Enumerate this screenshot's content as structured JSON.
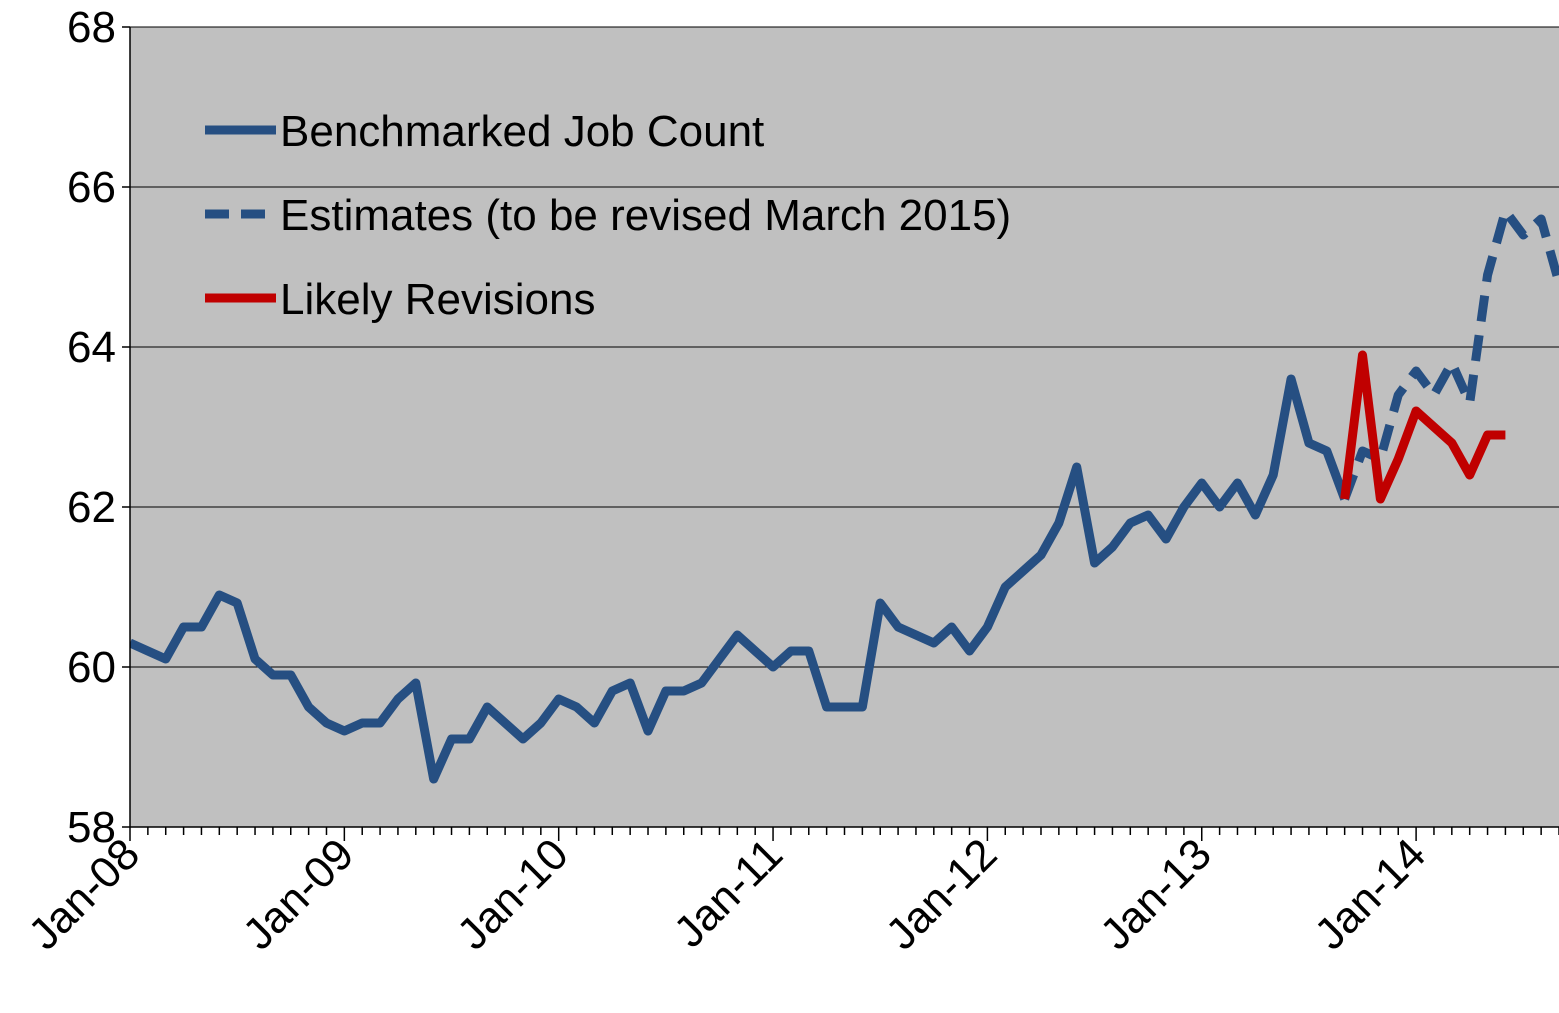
{
  "chart_data": {
    "type": "line",
    "categories": [
      "Jan-08",
      null,
      null,
      null,
      null,
      null,
      null,
      null,
      null,
      null,
      null,
      null,
      "Jan-09",
      null,
      null,
      null,
      null,
      null,
      null,
      null,
      null,
      null,
      null,
      null,
      "Jan-10",
      null,
      null,
      null,
      null,
      null,
      null,
      null,
      null,
      null,
      null,
      null,
      "Jan-11",
      null,
      null,
      null,
      null,
      null,
      null,
      null,
      null,
      null,
      null,
      null,
      "Jan-12",
      null,
      null,
      null,
      null,
      null,
      null,
      null,
      null,
      null,
      null,
      null,
      "Jan-13",
      null,
      null,
      null,
      null,
      null,
      null,
      null,
      null,
      null,
      null,
      null,
      "Jan-14",
      null,
      null,
      null,
      null,
      null,
      null,
      null,
      null
    ],
    "series": [
      {
        "name": "Benchmarked Job Count",
        "color": "#264f82",
        "dashed": false,
        "values": [
          60.3,
          60.2,
          60.1,
          60.5,
          60.5,
          60.9,
          60.8,
          60.1,
          59.9,
          59.9,
          59.5,
          59.3,
          59.2,
          59.3,
          59.3,
          59.6,
          59.8,
          58.6,
          59.1,
          59.1,
          59.5,
          59.3,
          59.1,
          59.3,
          59.6,
          59.5,
          59.3,
          59.7,
          59.8,
          59.2,
          59.7,
          59.7,
          59.8,
          60.1,
          60.4,
          60.2,
          60.0,
          60.2,
          60.2,
          59.5,
          59.5,
          59.5,
          60.8,
          60.5,
          60.4,
          60.3,
          60.5,
          60.2,
          60.5,
          61.0,
          61.2,
          61.4,
          61.8,
          62.5,
          61.3,
          61.5,
          61.8,
          61.9,
          61.6,
          62.0,
          62.3,
          62.0,
          62.3,
          61.9,
          62.4,
          63.6,
          62.8,
          62.7,
          62.1,
          null,
          null,
          null,
          null,
          null,
          null,
          null,
          null,
          null,
          null,
          null,
          null
        ]
      },
      {
        "name": "Estimates (to be revised March 2015)",
        "color": "#264f82",
        "dashed": true,
        "values": [
          null,
          null,
          null,
          null,
          null,
          null,
          null,
          null,
          null,
          null,
          null,
          null,
          null,
          null,
          null,
          null,
          null,
          null,
          null,
          null,
          null,
          null,
          null,
          null,
          null,
          null,
          null,
          null,
          null,
          null,
          null,
          null,
          null,
          null,
          null,
          null,
          null,
          null,
          null,
          null,
          null,
          null,
          null,
          null,
          null,
          null,
          null,
          null,
          null,
          null,
          null,
          null,
          null,
          null,
          null,
          null,
          null,
          null,
          null,
          null,
          null,
          null,
          null,
          null,
          null,
          null,
          null,
          null,
          62.1,
          62.7,
          62.6,
          63.4,
          63.7,
          63.4,
          63.8,
          63.3,
          64.9,
          65.7,
          65.4,
          65.6,
          64.8
        ]
      },
      {
        "name": "Likely Revisions",
        "color": "#c00000",
        "dashed": false,
        "values": [
          null,
          null,
          null,
          null,
          null,
          null,
          null,
          null,
          null,
          null,
          null,
          null,
          null,
          null,
          null,
          null,
          null,
          null,
          null,
          null,
          null,
          null,
          null,
          null,
          null,
          null,
          null,
          null,
          null,
          null,
          null,
          null,
          null,
          null,
          null,
          null,
          null,
          null,
          null,
          null,
          null,
          null,
          null,
          null,
          null,
          null,
          null,
          null,
          null,
          null,
          null,
          null,
          null,
          null,
          null,
          null,
          null,
          null,
          null,
          null,
          null,
          null,
          null,
          null,
          null,
          null,
          null,
          null,
          62.1,
          63.9,
          62.1,
          62.6,
          63.2,
          63.0,
          62.8,
          62.4,
          62.9,
          62.9,
          null,
          null,
          null
        ]
      }
    ],
    "ylim": [
      58,
      68
    ],
    "yticks": [
      58,
      60,
      62,
      64,
      66,
      68
    ],
    "grid": true,
    "legend": "top-left"
  }
}
